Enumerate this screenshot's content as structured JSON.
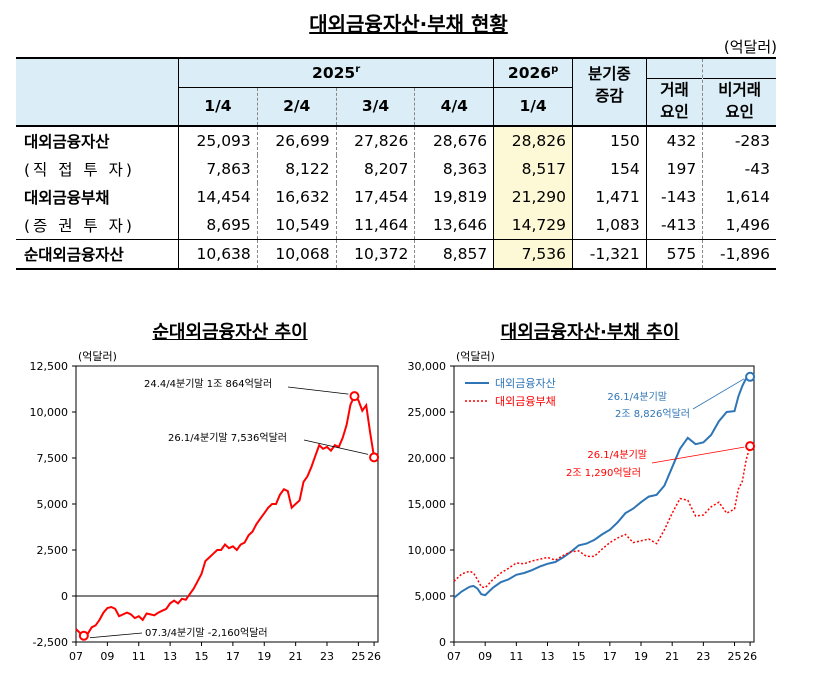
{
  "title": "대외금융자산·부채 현황",
  "unit": "(억달러)",
  "table": {
    "year_2025": "2025",
    "year_2025_sup": "r",
    "year_2026": "2026",
    "year_2026_sup": "p",
    "col_change": "분기중 증감",
    "col_change_l1": "분기중",
    "col_change_l2": "증감",
    "col_txn_l1": "거래",
    "col_txn_l2": "요인",
    "col_nontxn_l1": "비거래",
    "col_nontxn_l2": "요인",
    "quarters": [
      "1/4",
      "2/4",
      "3/4",
      "4/4",
      "1/4"
    ],
    "rows": [
      {
        "label": "대외금융자산",
        "values": [
          "25,093",
          "26,699",
          "27,826",
          "28,676",
          "28,826",
          "150",
          "432",
          "-283"
        ]
      },
      {
        "label": "(직 접 투 자)",
        "values": [
          "7,863",
          "8,122",
          "8,207",
          "8,363",
          "8,517",
          "154",
          "197",
          "-43"
        ]
      },
      {
        "label": "대외금융부채",
        "values": [
          "14,454",
          "16,632",
          "17,454",
          "19,819",
          "21,290",
          "1,471",
          "-143",
          "1,614"
        ]
      },
      {
        "label": "(증 권 투 자)",
        "values": [
          "8,695",
          "10,549",
          "11,464",
          "13,646",
          "14,729",
          "1,083",
          "-413",
          "1,496"
        ]
      },
      {
        "label": "순대외금융자산",
        "values": [
          "10,638",
          "10,068",
          "10,372",
          "8,857",
          "7,536",
          "-1,321",
          "575",
          "-1,896"
        ]
      }
    ]
  },
  "chart_data": [
    {
      "type": "line",
      "title": "순대외금융자산 추이",
      "unit": "(억달러)",
      "x_ticks": [
        "07",
        "09",
        "11",
        "13",
        "15",
        "17",
        "19",
        "21",
        "23",
        "25",
        "26"
      ],
      "y_ticks": [
        "12,500",
        "10,000",
        "7,500",
        "5,000",
        "2,500",
        "0",
        "-2,500"
      ],
      "ylim": [
        -2500,
        12500
      ],
      "xlim": [
        2007.0,
        2026.25
      ],
      "color": "#ff0000",
      "annotations": [
        "24.4/4분기말 1조 864억달러",
        "26.1/4분기말 7,536억달러",
        "07.3/4분기말 -2,160억달러"
      ],
      "series": [
        {
          "values": [
            [
              2007.0,
              -1800
            ],
            [
              2007.25,
              -2000
            ],
            [
              2007.5,
              -2160
            ],
            [
              2007.75,
              -2050
            ],
            [
              2008.0,
              -1700
            ],
            [
              2008.25,
              -1600
            ],
            [
              2008.5,
              -1300
            ],
            [
              2008.75,
              -900
            ],
            [
              2009.0,
              -650
            ],
            [
              2009.25,
              -600
            ],
            [
              2009.5,
              -700
            ],
            [
              2009.75,
              -1100
            ],
            [
              2010.0,
              -1000
            ],
            [
              2010.25,
              -900
            ],
            [
              2010.5,
              -1000
            ],
            [
              2010.75,
              -1200
            ],
            [
              2011.0,
              -1100
            ],
            [
              2011.25,
              -1300
            ],
            [
              2011.5,
              -950
            ],
            [
              2011.75,
              -1000
            ],
            [
              2012.0,
              -1050
            ],
            [
              2012.25,
              -900
            ],
            [
              2012.5,
              -800
            ],
            [
              2012.75,
              -700
            ],
            [
              2013.0,
              -400
            ],
            [
              2013.25,
              -250
            ],
            [
              2013.5,
              -400
            ],
            [
              2013.75,
              -150
            ],
            [
              2014.0,
              -200
            ],
            [
              2014.25,
              100
            ],
            [
              2014.5,
              400
            ],
            [
              2014.75,
              800
            ],
            [
              2015.0,
              1200
            ],
            [
              2015.25,
              1900
            ],
            [
              2015.5,
              2100
            ],
            [
              2015.75,
              2300
            ],
            [
              2016.0,
              2500
            ],
            [
              2016.25,
              2500
            ],
            [
              2016.5,
              2800
            ],
            [
              2016.75,
              2600
            ],
            [
              2017.0,
              2700
            ],
            [
              2017.25,
              2500
            ],
            [
              2017.5,
              2800
            ],
            [
              2017.75,
              2900
            ],
            [
              2018.0,
              3300
            ],
            [
              2018.25,
              3500
            ],
            [
              2018.5,
              3900
            ],
            [
              2018.75,
              4200
            ],
            [
              2019.0,
              4500
            ],
            [
              2019.25,
              4800
            ],
            [
              2019.5,
              5000
            ],
            [
              2019.75,
              5000
            ],
            [
              2020.0,
              5500
            ],
            [
              2020.25,
              5800
            ],
            [
              2020.5,
              5700
            ],
            [
              2020.75,
              4800
            ],
            [
              2021.0,
              5000
            ],
            [
              2021.25,
              5200
            ],
            [
              2021.5,
              6200
            ],
            [
              2021.75,
              6500
            ],
            [
              2022.0,
              7000
            ],
            [
              2022.25,
              7600
            ],
            [
              2022.5,
              8200
            ],
            [
              2022.75,
              8000
            ],
            [
              2023.0,
              8100
            ],
            [
              2023.25,
              7900
            ],
            [
              2023.5,
              8200
            ],
            [
              2023.75,
              8100
            ],
            [
              2024.0,
              8600
            ],
            [
              2024.25,
              9300
            ],
            [
              2024.5,
              10400
            ],
            [
              2024.75,
              10864
            ],
            [
              2025.0,
              10638
            ],
            [
              2025.25,
              10068
            ],
            [
              2025.5,
              10372
            ],
            [
              2025.75,
              8857
            ],
            [
              2026.0,
              7536
            ]
          ]
        }
      ],
      "markers": [
        [
          2007.5,
          -2160
        ],
        [
          2024.75,
          10864
        ],
        [
          2026.0,
          7536
        ]
      ]
    },
    {
      "type": "line",
      "title": "대외금융자산·부채 추이",
      "unit": "(억달러)",
      "x_ticks": [
        "07",
        "09",
        "11",
        "13",
        "15",
        "17",
        "19",
        "21",
        "23",
        "25",
        "26"
      ],
      "y_ticks": [
        "30,000",
        "25,000",
        "20,000",
        "15,000",
        "10,000",
        "5,000",
        "0"
      ],
      "ylim": [
        0,
        30000
      ],
      "xlim": [
        2007.0,
        2026.25
      ],
      "legend": "top-left",
      "annotations": [
        "26.1/4분기말",
        "2조 8,826억달러",
        "26.1/4분기말",
        "2조 1,290억달러"
      ],
      "series": [
        {
          "name": "대외금융자산",
          "color": "#2e75b6",
          "style": "solid",
          "values": [
            [
              2007.0,
              4800
            ],
            [
              2007.5,
              5500
            ],
            [
              2008.0,
              6000
            ],
            [
              2008.25,
              6100
            ],
            [
              2008.5,
              5800
            ],
            [
              2008.75,
              5200
            ],
            [
              2009.0,
              5100
            ],
            [
              2009.5,
              5900
            ],
            [
              2010.0,
              6500
            ],
            [
              2010.5,
              6800
            ],
            [
              2011.0,
              7300
            ],
            [
              2011.5,
              7500
            ],
            [
              2012.0,
              7800
            ],
            [
              2012.5,
              8200
            ],
            [
              2013.0,
              8500
            ],
            [
              2013.5,
              8700
            ],
            [
              2014.0,
              9200
            ],
            [
              2014.5,
              9800
            ],
            [
              2015.0,
              10500
            ],
            [
              2015.5,
              10700
            ],
            [
              2016.0,
              11100
            ],
            [
              2016.5,
              11700
            ],
            [
              2017.0,
              12200
            ],
            [
              2017.5,
              13000
            ],
            [
              2018.0,
              14000
            ],
            [
              2018.5,
              14500
            ],
            [
              2019.0,
              15200
            ],
            [
              2019.5,
              15800
            ],
            [
              2020.0,
              16000
            ],
            [
              2020.5,
              17000
            ],
            [
              2021.0,
              19000
            ],
            [
              2021.5,
              21000
            ],
            [
              2022.0,
              22200
            ],
            [
              2022.5,
              21500
            ],
            [
              2023.0,
              21700
            ],
            [
              2023.5,
              22500
            ],
            [
              2024.0,
              24000
            ],
            [
              2024.5,
              25000
            ],
            [
              2025.0,
              25093
            ],
            [
              2025.25,
              26699
            ],
            [
              2025.5,
              27826
            ],
            [
              2025.75,
              28676
            ],
            [
              2026.0,
              28826
            ]
          ]
        },
        {
          "name": "대외금융부채",
          "color": "#ff0000",
          "style": "dotted",
          "values": [
            [
              2007.0,
              6600
            ],
            [
              2007.5,
              7400
            ],
            [
              2008.0,
              7700
            ],
            [
              2008.25,
              7500
            ],
            [
              2008.5,
              6800
            ],
            [
              2008.75,
              6000
            ],
            [
              2009.0,
              5900
            ],
            [
              2009.5,
              6800
            ],
            [
              2010.0,
              7500
            ],
            [
              2010.5,
              8000
            ],
            [
              2011.0,
              8600
            ],
            [
              2011.5,
              8500
            ],
            [
              2012.0,
              8800
            ],
            [
              2012.5,
              9000
            ],
            [
              2013.0,
              9200
            ],
            [
              2013.5,
              8900
            ],
            [
              2014.0,
              9400
            ],
            [
              2014.5,
              9800
            ],
            [
              2015.0,
              9900
            ],
            [
              2015.5,
              9300
            ],
            [
              2016.0,
              9300
            ],
            [
              2016.5,
              10100
            ],
            [
              2017.0,
              10800
            ],
            [
              2017.5,
              11300
            ],
            [
              2018.0,
              11700
            ],
            [
              2018.5,
              10800
            ],
            [
              2019.0,
              11000
            ],
            [
              2019.5,
              11200
            ],
            [
              2020.0,
              10700
            ],
            [
              2020.5,
              12200
            ],
            [
              2021.0,
              14000
            ],
            [
              2021.5,
              15600
            ],
            [
              2022.0,
              15400
            ],
            [
              2022.5,
              13700
            ],
            [
              2023.0,
              13800
            ],
            [
              2023.5,
              14700
            ],
            [
              2024.0,
              15200
            ],
            [
              2024.5,
              14000
            ],
            [
              2025.0,
              14454
            ],
            [
              2025.25,
              16632
            ],
            [
              2025.5,
              17454
            ],
            [
              2025.75,
              19819
            ],
            [
              2026.0,
              21290
            ]
          ]
        }
      ],
      "markers": [
        [
          2026.0,
          28826
        ],
        [
          2026.0,
          21290
        ]
      ]
    }
  ]
}
